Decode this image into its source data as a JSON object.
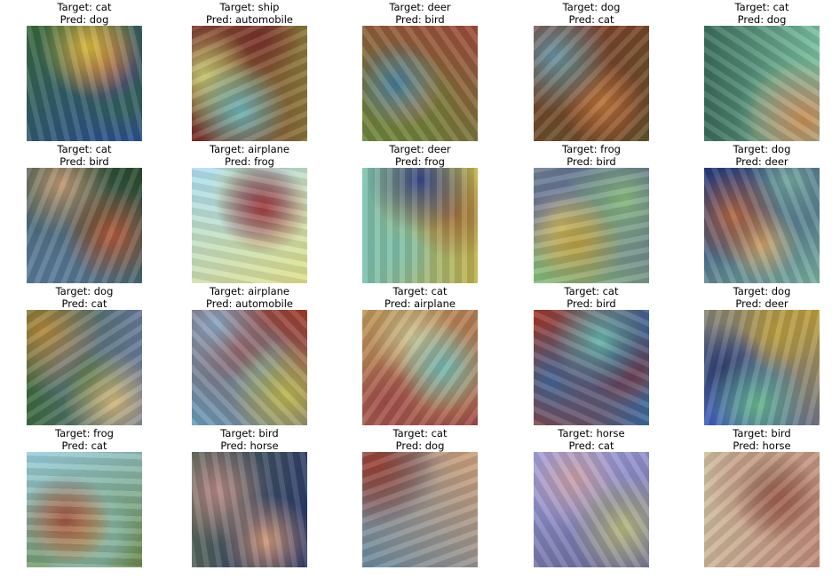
{
  "grid": {
    "rows": 4,
    "cols": 5,
    "items": [
      {
        "target": "Target: cat",
        "pred": "Pred: dog",
        "palette": [
          "#3a6a3a",
          "#e8c33a",
          "#2a4f9a",
          "#b04a4a"
        ]
      },
      {
        "target": "Target: ship",
        "pred": "Pred: automobile",
        "palette": [
          "#8a7a3a",
          "#6ac0c8",
          "#7a2a2a",
          "#cfd67a"
        ]
      },
      {
        "target": "Target: deer",
        "pred": "Pred: bird",
        "palette": [
          "#6a8a3a",
          "#3a7aa0",
          "#a04a3a",
          "#c0b06a"
        ]
      },
      {
        "target": "Target: dog",
        "pred": "Pred: cat",
        "palette": [
          "#8a3a2a",
          "#6a9ab0",
          "#5a5a2a",
          "#c07a3a"
        ]
      },
      {
        "target": "Target: cat",
        "pred": "Pred: dog",
        "palette": [
          "#7ac0a0",
          "#cf8a4a",
          "#3a6a5a",
          "#b0d0e0"
        ]
      },
      {
        "target": "Target: cat",
        "pred": "Pred: bird",
        "palette": [
          "#5a7a9a",
          "#c05a3a",
          "#2a4a2a",
          "#d0a07a"
        ]
      },
      {
        "target": "Target: airplane",
        "pred": "Pred: frog",
        "palette": [
          "#b0e0f0",
          "#a02a2a",
          "#e0e08a",
          "#6a9ac0"
        ]
      },
      {
        "target": "Target: deer",
        "pred": "Pred: frog",
        "palette": [
          "#c0b04a",
          "#2a3a8a",
          "#7ac0b0",
          "#a06a3a"
        ]
      },
      {
        "target": "Target: frog",
        "pred": "Pred: bird",
        "palette": [
          "#8ac07a",
          "#c0a03a",
          "#5a5aa0",
          "#e0d07a"
        ]
      },
      {
        "target": "Target: dog",
        "pred": "Pred: deer",
        "palette": [
          "#2a3a7a",
          "#c06a3a",
          "#7ab0a0",
          "#e0b06a"
        ]
      },
      {
        "target": "Target: dog",
        "pred": "Pred: cat",
        "palette": [
          "#6a7aa0",
          "#c08a3a",
          "#3a6a3a",
          "#e0c07a"
        ]
      },
      {
        "target": "Target: airplane",
        "pred": "Pred: automobile",
        "palette": [
          "#6aa0c0",
          "#c0c04a",
          "#a03a2a",
          "#8ab0d0"
        ]
      },
      {
        "target": "Target: cat",
        "pred": "Pred: airplane",
        "palette": [
          "#c09a5a",
          "#6ac0c0",
          "#a04a4a",
          "#d0d0a0"
        ]
      },
      {
        "target": "Target: cat",
        "pred": "Pred: bird",
        "palette": [
          "#3a6aa0",
          "#6ac0b0",
          "#a03a2a",
          "#2a2a6a"
        ]
      },
      {
        "target": "Target: dog",
        "pred": "Pred: deer",
        "palette": [
          "#3a5ac0",
          "#6ac08a",
          "#c0a03a",
          "#2a3a6a"
        ]
      },
      {
        "target": "Target: frog",
        "pred": "Pred: cat",
        "palette": [
          "#9ad0e0",
          "#a04a3a",
          "#6a8a4a",
          "#e0c07a"
        ]
      },
      {
        "target": "Target: bird",
        "pred": "Pred: horse",
        "palette": [
          "#2a3a6a",
          "#c08a8a",
          "#5a6a5a",
          "#e0a07a"
        ]
      },
      {
        "target": "Target: cat",
        "pred": "Pred: dog",
        "palette": [
          "#6a8aa0",
          "#a03a2a",
          "#d0a07a",
          "#3a5a7a"
        ]
      },
      {
        "target": "Target: horse",
        "pred": "Pred: cat",
        "palette": [
          "#a0a0e0",
          "#c0c07a",
          "#6a6a9a",
          "#d0a0a0"
        ]
      },
      {
        "target": "Target: bird",
        "pred": "Pred: horse",
        "palette": [
          "#c08a7a",
          "#a05a4a",
          "#d0c0a0",
          "#8a6a5a"
        ]
      }
    ]
  }
}
